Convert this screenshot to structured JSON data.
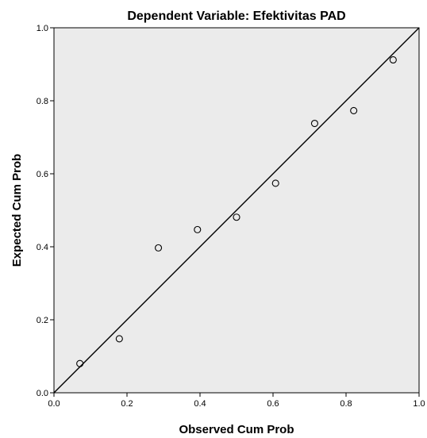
{
  "chart_data": {
    "type": "scatter",
    "title": "Dependent Variable: Efektivitas PAD",
    "xlabel": "Observed Cum Prob",
    "ylabel": "Expected Cum Prob",
    "xlim": [
      0.0,
      1.0
    ],
    "ylim": [
      0.0,
      1.0
    ],
    "x_ticks": [
      "0.0",
      "0.2",
      "0.4",
      "0.6",
      "0.8",
      "1.0"
    ],
    "y_ticks": [
      "0.0",
      "0.2",
      "0.4",
      "0.6",
      "0.8",
      "1.0"
    ],
    "grid": false,
    "reference_line": {
      "x": [
        0.0,
        1.0
      ],
      "y": [
        0.0,
        1.0
      ]
    },
    "points": [
      {
        "x": 0.071,
        "y": 0.08
      },
      {
        "x": 0.179,
        "y": 0.148
      },
      {
        "x": 0.286,
        "y": 0.397
      },
      {
        "x": 0.393,
        "y": 0.447
      },
      {
        "x": 0.5,
        "y": 0.481
      },
      {
        "x": 0.607,
        "y": 0.574
      },
      {
        "x": 0.714,
        "y": 0.738
      },
      {
        "x": 0.821,
        "y": 0.773
      },
      {
        "x": 0.929,
        "y": 0.912
      }
    ],
    "colors": {
      "plot_background": "#ebebeb",
      "marker": "#000000",
      "line": "#000000"
    }
  }
}
